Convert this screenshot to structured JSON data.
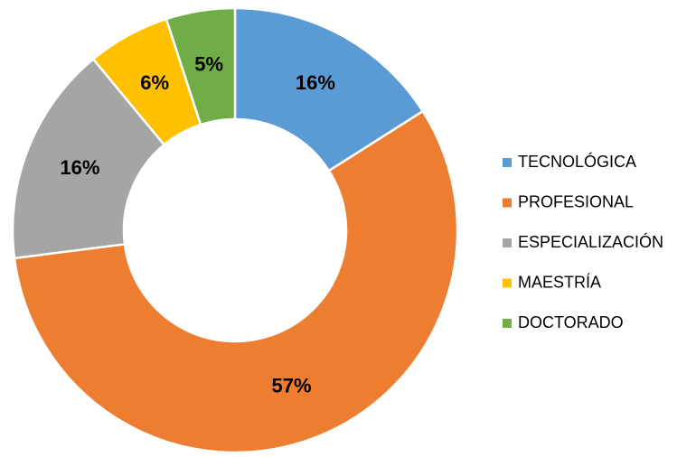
{
  "chart_data": {
    "type": "donut",
    "categories": [
      "TECNOLÓGICA",
      "PROFESIONAL",
      "ESPECIALIZACIÓN",
      "MAESTRÍA",
      "DOCTORADO"
    ],
    "values": [
      16,
      57,
      16,
      6,
      5
    ],
    "value_labels": [
      "16%",
      "57%",
      "16%",
      "6%",
      "5%"
    ],
    "colors": [
      "#5b9bd5",
      "#ed7d31",
      "#a5a5a5",
      "#ffc000",
      "#70ad47"
    ],
    "legend": "right"
  }
}
